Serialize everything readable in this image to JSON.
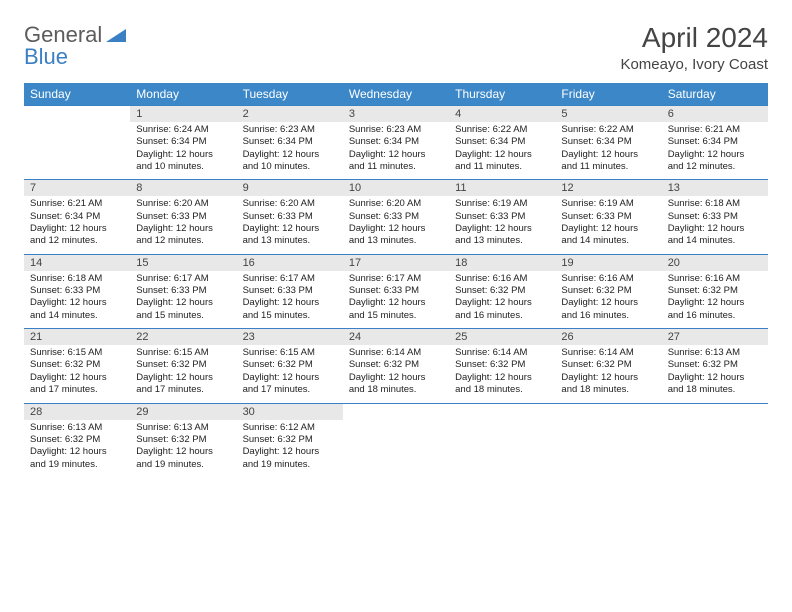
{
  "brand": {
    "part1": "General",
    "part2": "Blue"
  },
  "title": "April 2024",
  "location": "Komeayo, Ivory Coast",
  "colors": {
    "header_bg": "#3b87c8",
    "header_fg": "#ffffff",
    "row_border": "#3b7fc4",
    "daynum_bg": "#e8e8e8",
    "text": "#333333",
    "brand_gray": "#5c5c5c",
    "brand_blue": "#3b7fc4",
    "page_bg": "#ffffff"
  },
  "weekdays": [
    "Sunday",
    "Monday",
    "Tuesday",
    "Wednesday",
    "Thursday",
    "Friday",
    "Saturday"
  ],
  "weeks": [
    [
      null,
      {
        "n": "1",
        "sunrise": "6:24 AM",
        "sunset": "6:34 PM",
        "dl1": "Daylight: 12 hours",
        "dl2": "and 10 minutes."
      },
      {
        "n": "2",
        "sunrise": "6:23 AM",
        "sunset": "6:34 PM",
        "dl1": "Daylight: 12 hours",
        "dl2": "and 10 minutes."
      },
      {
        "n": "3",
        "sunrise": "6:23 AM",
        "sunset": "6:34 PM",
        "dl1": "Daylight: 12 hours",
        "dl2": "and 11 minutes."
      },
      {
        "n": "4",
        "sunrise": "6:22 AM",
        "sunset": "6:34 PM",
        "dl1": "Daylight: 12 hours",
        "dl2": "and 11 minutes."
      },
      {
        "n": "5",
        "sunrise": "6:22 AM",
        "sunset": "6:34 PM",
        "dl1": "Daylight: 12 hours",
        "dl2": "and 11 minutes."
      },
      {
        "n": "6",
        "sunrise": "6:21 AM",
        "sunset": "6:34 PM",
        "dl1": "Daylight: 12 hours",
        "dl2": "and 12 minutes."
      }
    ],
    [
      {
        "n": "7",
        "sunrise": "6:21 AM",
        "sunset": "6:34 PM",
        "dl1": "Daylight: 12 hours",
        "dl2": "and 12 minutes."
      },
      {
        "n": "8",
        "sunrise": "6:20 AM",
        "sunset": "6:33 PM",
        "dl1": "Daylight: 12 hours",
        "dl2": "and 12 minutes."
      },
      {
        "n": "9",
        "sunrise": "6:20 AM",
        "sunset": "6:33 PM",
        "dl1": "Daylight: 12 hours",
        "dl2": "and 13 minutes."
      },
      {
        "n": "10",
        "sunrise": "6:20 AM",
        "sunset": "6:33 PM",
        "dl1": "Daylight: 12 hours",
        "dl2": "and 13 minutes."
      },
      {
        "n": "11",
        "sunrise": "6:19 AM",
        "sunset": "6:33 PM",
        "dl1": "Daylight: 12 hours",
        "dl2": "and 13 minutes."
      },
      {
        "n": "12",
        "sunrise": "6:19 AM",
        "sunset": "6:33 PM",
        "dl1": "Daylight: 12 hours",
        "dl2": "and 14 minutes."
      },
      {
        "n": "13",
        "sunrise": "6:18 AM",
        "sunset": "6:33 PM",
        "dl1": "Daylight: 12 hours",
        "dl2": "and 14 minutes."
      }
    ],
    [
      {
        "n": "14",
        "sunrise": "6:18 AM",
        "sunset": "6:33 PM",
        "dl1": "Daylight: 12 hours",
        "dl2": "and 14 minutes."
      },
      {
        "n": "15",
        "sunrise": "6:17 AM",
        "sunset": "6:33 PM",
        "dl1": "Daylight: 12 hours",
        "dl2": "and 15 minutes."
      },
      {
        "n": "16",
        "sunrise": "6:17 AM",
        "sunset": "6:33 PM",
        "dl1": "Daylight: 12 hours",
        "dl2": "and 15 minutes."
      },
      {
        "n": "17",
        "sunrise": "6:17 AM",
        "sunset": "6:33 PM",
        "dl1": "Daylight: 12 hours",
        "dl2": "and 15 minutes."
      },
      {
        "n": "18",
        "sunrise": "6:16 AM",
        "sunset": "6:32 PM",
        "dl1": "Daylight: 12 hours",
        "dl2": "and 16 minutes."
      },
      {
        "n": "19",
        "sunrise": "6:16 AM",
        "sunset": "6:32 PM",
        "dl1": "Daylight: 12 hours",
        "dl2": "and 16 minutes."
      },
      {
        "n": "20",
        "sunrise": "6:16 AM",
        "sunset": "6:32 PM",
        "dl1": "Daylight: 12 hours",
        "dl2": "and 16 minutes."
      }
    ],
    [
      {
        "n": "21",
        "sunrise": "6:15 AM",
        "sunset": "6:32 PM",
        "dl1": "Daylight: 12 hours",
        "dl2": "and 17 minutes."
      },
      {
        "n": "22",
        "sunrise": "6:15 AM",
        "sunset": "6:32 PM",
        "dl1": "Daylight: 12 hours",
        "dl2": "and 17 minutes."
      },
      {
        "n": "23",
        "sunrise": "6:15 AM",
        "sunset": "6:32 PM",
        "dl1": "Daylight: 12 hours",
        "dl2": "and 17 minutes."
      },
      {
        "n": "24",
        "sunrise": "6:14 AM",
        "sunset": "6:32 PM",
        "dl1": "Daylight: 12 hours",
        "dl2": "and 18 minutes."
      },
      {
        "n": "25",
        "sunrise": "6:14 AM",
        "sunset": "6:32 PM",
        "dl1": "Daylight: 12 hours",
        "dl2": "and 18 minutes."
      },
      {
        "n": "26",
        "sunrise": "6:14 AM",
        "sunset": "6:32 PM",
        "dl1": "Daylight: 12 hours",
        "dl2": "and 18 minutes."
      },
      {
        "n": "27",
        "sunrise": "6:13 AM",
        "sunset": "6:32 PM",
        "dl1": "Daylight: 12 hours",
        "dl2": "and 18 minutes."
      }
    ],
    [
      {
        "n": "28",
        "sunrise": "6:13 AM",
        "sunset": "6:32 PM",
        "dl1": "Daylight: 12 hours",
        "dl2": "and 19 minutes."
      },
      {
        "n": "29",
        "sunrise": "6:13 AM",
        "sunset": "6:32 PM",
        "dl1": "Daylight: 12 hours",
        "dl2": "and 19 minutes."
      },
      {
        "n": "30",
        "sunrise": "6:12 AM",
        "sunset": "6:32 PM",
        "dl1": "Daylight: 12 hours",
        "dl2": "and 19 minutes."
      },
      null,
      null,
      null,
      null
    ]
  ],
  "labels": {
    "sunrise_prefix": "Sunrise: ",
    "sunset_prefix": "Sunset: "
  }
}
